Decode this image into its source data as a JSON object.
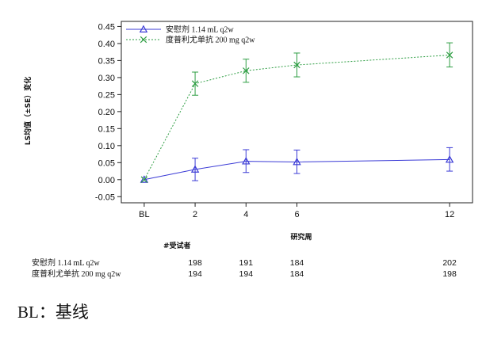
{
  "chart_data": {
    "type": "line",
    "xlabel": "研究周",
    "ylabel": "LS均值（±SE）变化",
    "x": [
      "BL",
      "2",
      "4",
      "6",
      "12"
    ],
    "x_weeks": [
      0,
      2,
      4,
      6,
      12
    ],
    "ylim": [
      -0.05,
      0.45
    ],
    "yticks": [
      "0.45",
      "0.40",
      "0.35",
      "0.30",
      "0.25",
      "0.20",
      "0.15",
      "0.10",
      "0.05",
      "0.00",
      "-0.05"
    ],
    "series": [
      {
        "name": "安慰剂 1.14 mL q2w",
        "color": "#3b3bd6",
        "marker": "triangle",
        "line_style": "solid",
        "values": [
          0.0,
          0.03,
          0.054,
          0.052,
          0.059
        ],
        "se_low": [
          null,
          -0.003,
          0.021,
          0.018,
          0.025
        ],
        "se_high": [
          null,
          0.063,
          0.088,
          0.087,
          0.094
        ]
      },
      {
        "name": "度普利尤单抗 200 mg q2w",
        "color": "#2f9e44",
        "marker": "x",
        "line_style": "dotted",
        "values": [
          0.0,
          0.282,
          0.32,
          0.337,
          0.366
        ],
        "se_low": [
          null,
          0.248,
          0.286,
          0.302,
          0.331
        ],
        "se_high": [
          null,
          0.316,
          0.354,
          0.372,
          0.402
        ]
      }
    ],
    "legend_position": "top-left",
    "grid": false
  },
  "at_risk": {
    "title": "#受试者",
    "weeks": [
      "2",
      "4",
      "6",
      "12"
    ],
    "rows": [
      {
        "label": "安慰剂 1.14 mL q2w",
        "counts": [
          "198",
          "191",
          "184",
          "202"
        ]
      },
      {
        "label": "度普利尤单抗 200 mg q2w",
        "counts": [
          "194",
          "194",
          "184",
          "198"
        ]
      }
    ]
  },
  "footnote": "BL：基线"
}
